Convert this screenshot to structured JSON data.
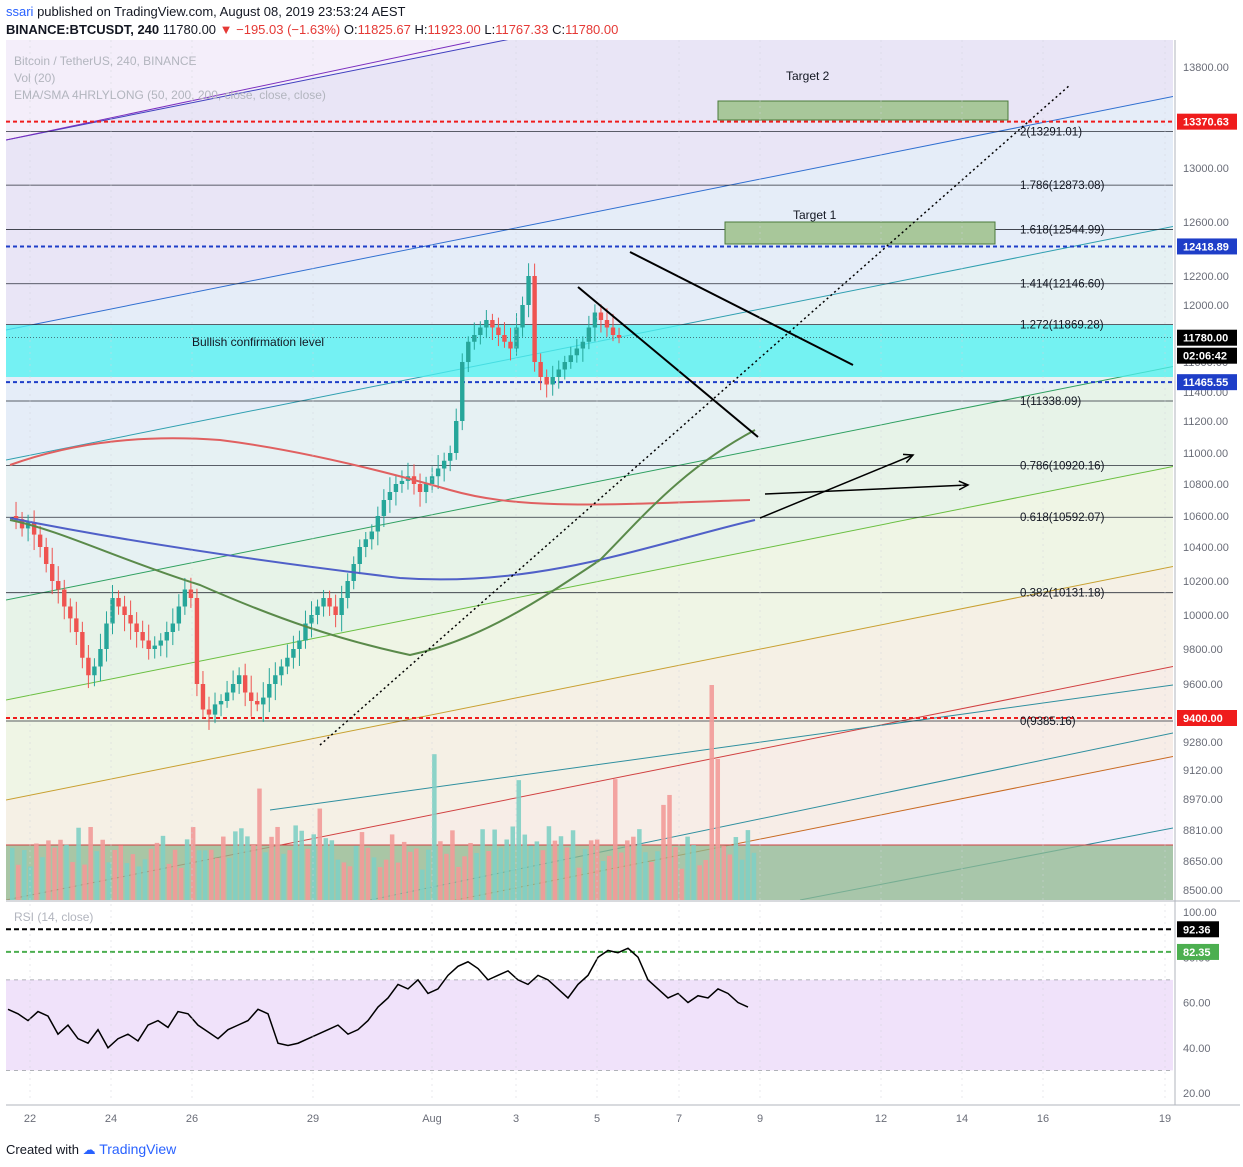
{
  "header": {
    "user": "ssari",
    "published": "published on TradingView.com, August 08, 2019 23:53:24 AEST",
    "symbol": "BINANCE:BTCUSDT, 240",
    "last": "11780.00",
    "change": "▼ −195.03 (−1.63%)",
    "o_label": "O:",
    "o_val": "11825.67",
    "h_label": "H:",
    "h_val": "11923.00",
    "l_label": "L:",
    "l_val": "11767.33",
    "c_label": "C:",
    "c_val": "11780.00"
  },
  "legend": {
    "line1": "Bitcoin / TetherUS, 240, BINANCE",
    "line2": "Vol (20)",
    "line3": "EMA/SMA 4HRLYLONG (50, 200, 200, close, close, close)",
    "rsi": "RSI (14, close)"
  },
  "footer": {
    "created_with": "Created with",
    "brand": "TradingView"
  },
  "colors": {
    "up": "#26a69a",
    "down": "#ef5350",
    "sma_red": "#e06060",
    "ema_blue": "#5060c8",
    "ema_green": "#5a8a4a",
    "cyan_zone": "#4ef2f2",
    "tag_red": "#ef1c1c",
    "tag_blue": "#1e3ec8",
    "tag_black": "#000000",
    "tag_green": "#4caf50"
  },
  "chart_data": {
    "type": "candlestick",
    "y_axis_ticks": [
      "13800.00",
      "13400.00",
      "13000.00",
      "12600.00",
      "12200.00",
      "12000.00",
      "11800.00",
      "11600.00",
      "11400.00",
      "11200.00",
      "11000.00",
      "10800.00",
      "10600.00",
      "10400.00",
      "10200.00",
      "10000.00",
      "9800.00",
      "9600.00",
      "9400.00",
      "9280.00",
      "9120.00",
      "8970.00",
      "8810.00",
      "8650.00",
      "8500.00"
    ],
    "x_axis_ticks": [
      "22",
      "24",
      "26",
      "29",
      "Aug",
      "3",
      "5",
      "7",
      "9",
      "12",
      "14",
      "16",
      "19"
    ],
    "rsi_ticks": [
      "100.00",
      "80.00",
      "60.00",
      "40.00",
      "20.00"
    ],
    "price_tags": [
      {
        "label": "13370.63",
        "price": 13370.63,
        "color": "red"
      },
      {
        "label": "12418.89",
        "price": 12418.89,
        "color": "blue"
      },
      {
        "label": "11780.00",
        "price": 11780.0,
        "color": "black"
      },
      {
        "label": "02:06:42",
        "price": null,
        "color": "black"
      },
      {
        "label": "11465.55",
        "price": 11465.55,
        "color": "blue"
      },
      {
        "label": "9400.00",
        "price": 9400.0,
        "color": "red"
      }
    ],
    "rsi_tags": [
      {
        "label": "92.36",
        "value": 92.36,
        "color": "black"
      },
      {
        "label": "82.35",
        "value": 82.35,
        "color": "green"
      }
    ],
    "fib_levels": [
      {
        "label": "2(13291.01)",
        "price": 13291.01
      },
      {
        "label": "1.786(12873.08)",
        "price": 12873.08
      },
      {
        "label": "1.618(12544.99)",
        "price": 12544.99
      },
      {
        "label": "1.414(12146.60)",
        "price": 12146.6
      },
      {
        "label": "1.272(11869.28)",
        "price": 11869.28
      },
      {
        "label": "1(11338.09)",
        "price": 11338.09
      },
      {
        "label": "0.786(10920.16)",
        "price": 10920.16
      },
      {
        "label": "0.618(10592.07)",
        "price": 10592.07
      },
      {
        "label": "0.382(10131.18)",
        "price": 10131.18
      },
      {
        "label": "0(9385.16)",
        "price": 9385.16
      }
    ],
    "annotations": {
      "target1": "Target 1",
      "target2": "Target 2",
      "bullish": "Bullish confirmation level"
    },
    "ohlc_sample_last": {
      "open": 11825.67,
      "high": 11923.0,
      "low": 11767.33,
      "close": 11780.0
    }
  }
}
